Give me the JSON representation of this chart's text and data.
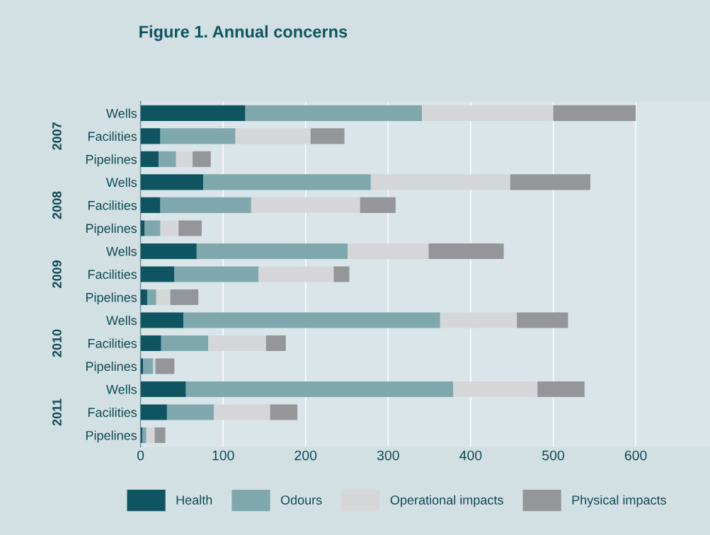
{
  "chart_data": {
    "type": "bar",
    "orientation": "horizontal",
    "stacked": true,
    "title": "Figure 1. Annual concerns",
    "categories": [
      "Wells",
      "Facilities",
      "Pipelines",
      "Wells",
      "Facilities",
      "Pipelines",
      "Wells",
      "Facilities",
      "Pipelines",
      "Wells",
      "Facilities",
      "Pipelines",
      "Wells",
      "Facilities",
      "Pipelines"
    ],
    "annotations": [
      "2007",
      "2008",
      "2009",
      "2010",
      "2011"
    ],
    "series": [
      {
        "name": "Health",
        "color": "#0f5461",
        "values": [
          127,
          24,
          22,
          76,
          24,
          5,
          68,
          41,
          8,
          52,
          25,
          3,
          55,
          32,
          2
        ]
      },
      {
        "name": "Odours",
        "color": "#7ea8ae",
        "values": [
          214,
          91,
          21,
          203,
          110,
          19,
          183,
          102,
          11,
          311,
          57,
          12,
          324,
          57,
          5
        ]
      },
      {
        "name": "Operational impacts",
        "color": "#d4d6d8",
        "values": [
          159,
          91,
          20,
          169,
          132,
          22,
          98,
          91,
          17,
          93,
          70,
          3,
          102,
          68,
          10
        ]
      },
      {
        "name": "Physical impacts",
        "color": "#949699",
        "values": [
          100,
          41,
          22,
          97,
          43,
          28,
          91,
          19,
          34,
          62,
          24,
          23,
          57,
          33,
          13
        ]
      }
    ],
    "xlim": [
      0,
      690
    ],
    "xticks": [
      0,
      100,
      200,
      300,
      400,
      500,
      600
    ],
    "grid": "x",
    "legend": "bottom"
  }
}
